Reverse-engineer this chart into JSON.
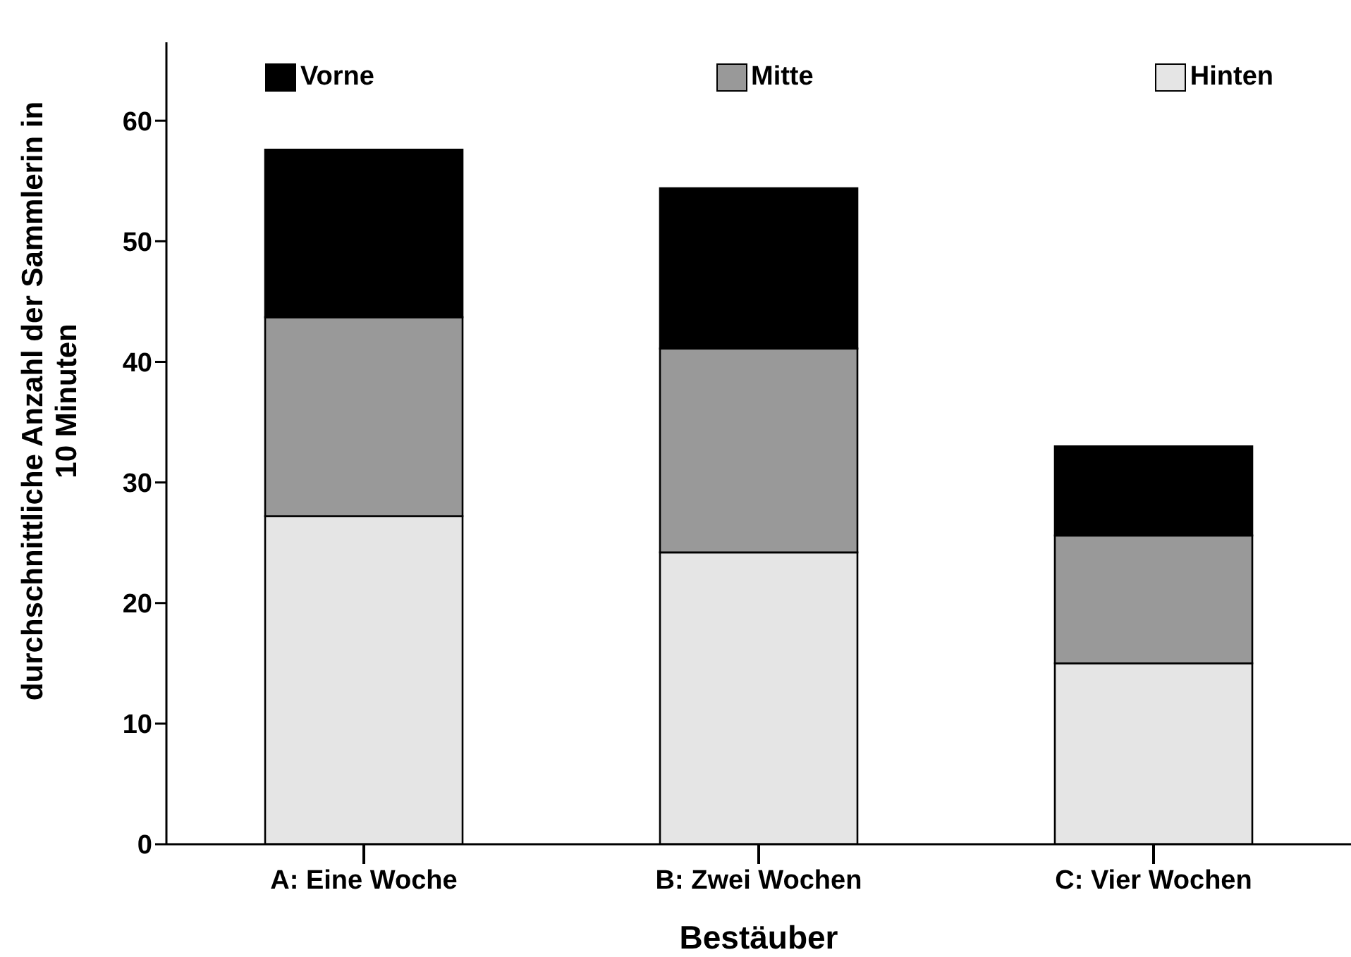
{
  "chart_data": {
    "type": "bar",
    "stacked": true,
    "xlabel": "Bestäuber",
    "ylabel": "durchschnittliche Anzahl der Sammlerin in 10 Minuten",
    "categories": [
      "A: Eine Woche",
      "B:  Zwei Wochen",
      "C: Vier Wochen"
    ],
    "series": [
      {
        "name": "Hinten",
        "color": "#e5e5e5",
        "values": [
          27.2,
          24.2,
          15.0
        ]
      },
      {
        "name": "Mitte",
        "color": "#999999",
        "values": [
          16.5,
          16.9,
          10.6
        ]
      },
      {
        "name": "Vorne",
        "color": "#000000",
        "values": [
          13.9,
          13.3,
          7.4
        ]
      }
    ],
    "ylim": [
      0,
      66.5
    ],
    "yticks": [
      0,
      10,
      20,
      30,
      40,
      50,
      60
    ],
    "grid": false,
    "legend": "top"
  }
}
